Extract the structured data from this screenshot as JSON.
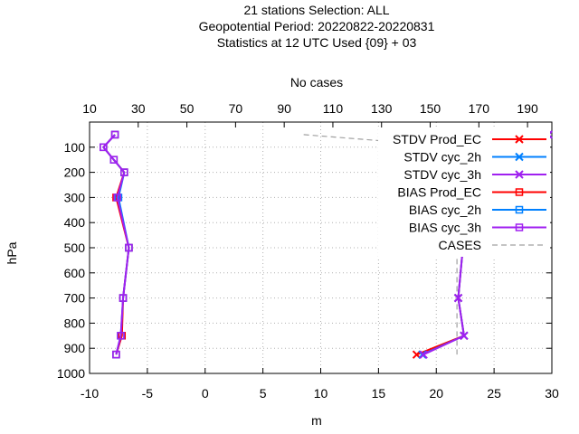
{
  "chart_data": {
    "type": "line",
    "title_lines": [
      "21 stations Selection: ALL",
      "Geopotential  Period: 20220822-20220831",
      "Statistics at 12 UTC  Used {09} + 03"
    ],
    "xlabel": "m",
    "ylabel": "hPa",
    "x2label": "No cases",
    "xlim": [
      -10,
      30
    ],
    "xticks": [
      -10,
      -5,
      0,
      5,
      10,
      15,
      20,
      25,
      30
    ],
    "ylim": [
      1000,
      0
    ],
    "yticks": [
      100,
      200,
      300,
      400,
      500,
      600,
      700,
      800,
      900,
      1000
    ],
    "x2lim": [
      10,
      200
    ],
    "x2ticks": [
      10,
      30,
      50,
      70,
      90,
      110,
      130,
      150,
      170,
      190
    ],
    "grid": true,
    "legend_position": "top-right",
    "levels": [
      50,
      100,
      150,
      200,
      300,
      500,
      700,
      850,
      925
    ],
    "series": [
      {
        "name": "STDV Prod_EC",
        "color": "#ff0000",
        "marker": "x",
        "values": [
          29.7,
          25.9,
          25.2,
          25.8,
          25.8,
          22.3,
          21.9,
          22.4,
          18.3
        ]
      },
      {
        "name": "STDV cyc_2h",
        "color": "#0080ff",
        "marker": "x",
        "values": [
          29.7,
          25.9,
          25.1,
          25.5,
          25.8,
          22.3,
          21.9,
          22.4,
          18.8
        ]
      },
      {
        "name": "STDV cyc_3h",
        "color": "#a020f0",
        "marker": "x",
        "values": [
          29.7,
          25.9,
          25.2,
          25.6,
          25.8,
          22.3,
          21.9,
          22.4,
          18.9
        ]
      },
      {
        "name": "BIAS Prod_EC",
        "color": "#ff0000",
        "marker": "s",
        "values": [
          -7.8,
          -8.8,
          -7.9,
          -7.0,
          -7.7,
          -6.6,
          -7.1,
          -7.2,
          -7.7
        ]
      },
      {
        "name": "BIAS cyc_2h",
        "color": "#0080ff",
        "marker": "s",
        "values": [
          -7.8,
          -8.8,
          -7.9,
          -7.0,
          -7.5,
          -6.6,
          -7.1,
          -7.3,
          -7.7
        ]
      },
      {
        "name": "BIAS cyc_3h",
        "color": "#a020f0",
        "marker": "s",
        "values": [
          -7.8,
          -8.8,
          -7.9,
          -7.0,
          -7.6,
          -6.6,
          -7.1,
          -7.3,
          -7.7
        ]
      },
      {
        "name": "CASES",
        "color": "#a0a0a0",
        "marker": "none",
        "axis": "x2",
        "values": [
          98,
          163,
          163,
          161,
          161,
          161,
          161,
          161,
          161
        ]
      }
    ]
  }
}
